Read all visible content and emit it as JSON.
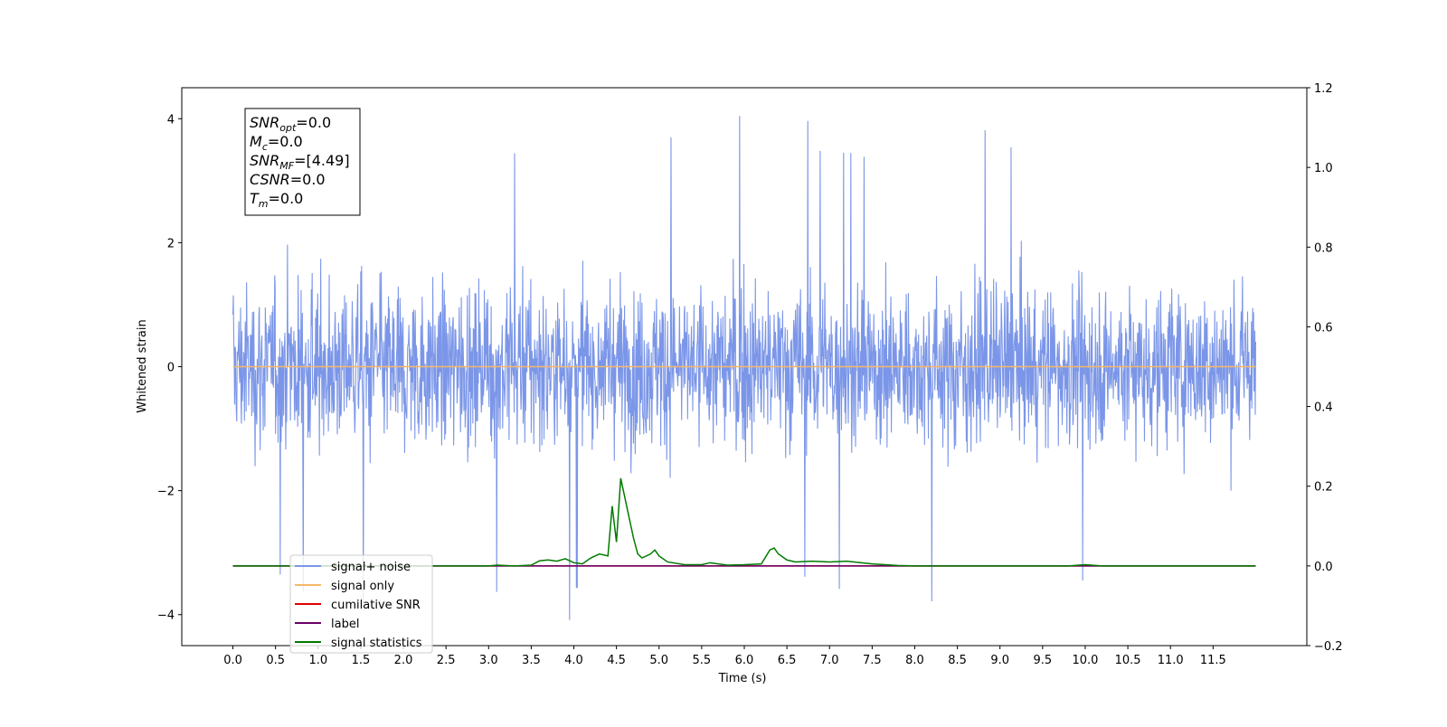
{
  "chart_data": {
    "type": "line",
    "xlabel": "Time (s)",
    "ylabel": "Whitened strain",
    "ylabel_right": "",
    "xlim": [
      -0.6,
      12.6
    ],
    "ylim": [
      -4.5,
      4.5
    ],
    "ylim_right": [
      -0.2,
      1.2
    ],
    "x_ticks": [
      0.0,
      0.5,
      1.0,
      1.5,
      2.0,
      2.5,
      3.0,
      3.5,
      4.0,
      4.5,
      5.0,
      5.5,
      6.0,
      6.5,
      7.0,
      7.5,
      8.0,
      8.5,
      9.0,
      9.5,
      10.0,
      10.5,
      11.0,
      11.5
    ],
    "x_tick_labels": [
      "0.0",
      "0.5",
      "1.0",
      "1.5",
      "2.0",
      "2.5",
      "3.0",
      "3.5",
      "4.0",
      "4.5",
      "5.0",
      "5.5",
      "6.0",
      "6.5",
      "7.0",
      "7.5",
      "8.0",
      "8.5",
      "9.0",
      "9.5",
      "10.0",
      "10.5",
      "11.0",
      "11.5"
    ],
    "y_ticks": [
      4,
      2,
      0,
      -2,
      -4
    ],
    "y_tick_labels": [
      "4",
      "2",
      "0",
      "−2",
      "−4"
    ],
    "y_right_ticks": [
      1.2,
      1.0,
      0.8,
      0.6,
      0.4,
      0.2,
      0.0,
      -0.2
    ],
    "y_right_tick_labels": [
      "1.2",
      "1.0",
      "0.8",
      "0.6",
      "0.4",
      "0.2",
      "0.0",
      "−0.2"
    ],
    "grid": false,
    "legend_position": "lower-left",
    "info_box": {
      "lines": [
        {
          "main": "SNR",
          "sub": "opt",
          "value": "=0.0"
        },
        {
          "main": "M",
          "sub": "c",
          "value": "=0.0"
        },
        {
          "main": "SNR",
          "sub": "MF",
          "value": "=[4.49]"
        },
        {
          "main": "CSNR",
          "sub": "",
          "value": "=0.0"
        },
        {
          "main": "T",
          "sub": "m",
          "value": "=0.0"
        }
      ]
    },
    "series": [
      {
        "name": "signal+ noise",
        "color": "#7b96e8",
        "axis": "left",
        "style": "noise",
        "x_range": [
          0.0,
          12.0
        ],
        "envelope_typical": [
          -2.1,
          2.1
        ],
        "extremes": [
          -4.1,
          4.15
        ]
      },
      {
        "name": "signal only",
        "color": "#f5b86a",
        "axis": "left",
        "x": [
          0.0,
          12.0
        ],
        "y": [
          0.0,
          0.0
        ]
      },
      {
        "name": "cumilative SNR",
        "color": "#e00000",
        "axis": "right",
        "x": [
          0.0,
          12.0
        ],
        "y": [
          0.0,
          0.0
        ]
      },
      {
        "name": "label",
        "color": "#6a006a",
        "axis": "right",
        "x": [
          0.0,
          12.0
        ],
        "y": [
          0.0,
          0.0
        ]
      },
      {
        "name": "signal statistics",
        "color": "#007a00",
        "axis": "right",
        "x": [
          0.0,
          3.0,
          3.1,
          3.3,
          3.5,
          3.6,
          3.7,
          3.8,
          3.9,
          4.0,
          4.1,
          4.2,
          4.3,
          4.4,
          4.45,
          4.5,
          4.55,
          4.6,
          4.65,
          4.7,
          4.75,
          4.8,
          4.9,
          4.95,
          5.0,
          5.1,
          5.3,
          5.5,
          5.6,
          5.8,
          6.0,
          6.2,
          6.3,
          6.35,
          6.4,
          6.5,
          6.6,
          6.8,
          7.0,
          7.2,
          7.5,
          7.8,
          8.0,
          9.8,
          10.0,
          10.2,
          12.0
        ],
        "y": [
          0.0,
          0.0,
          0.002,
          0.0,
          0.002,
          0.013,
          0.015,
          0.012,
          0.018,
          0.008,
          0.005,
          0.02,
          0.03,
          0.025,
          0.15,
          0.06,
          0.22,
          0.17,
          0.12,
          0.07,
          0.03,
          0.02,
          0.03,
          0.04,
          0.025,
          0.01,
          0.003,
          0.003,
          0.008,
          0.002,
          0.003,
          0.005,
          0.04,
          0.045,
          0.03,
          0.015,
          0.01,
          0.012,
          0.01,
          0.012,
          0.005,
          0.001,
          0.0,
          0.0,
          0.003,
          0.0,
          0.0
        ]
      }
    ]
  }
}
